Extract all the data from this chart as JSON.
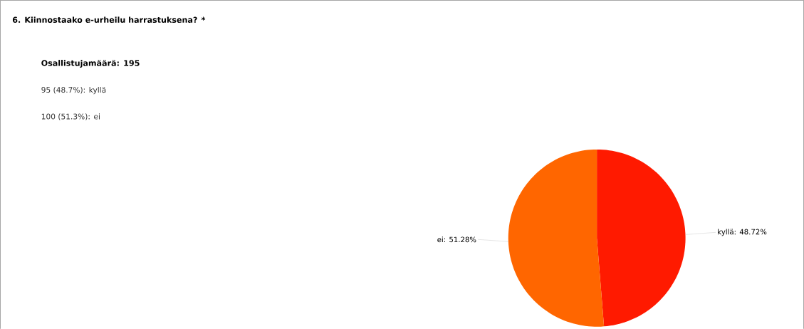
{
  "chart_data": {
    "type": "pie",
    "title": "6. Kiinnostaako e-urheilu harrastuksena? *",
    "subtitle": "Osallistujamäärä: 195",
    "annotations": [
      "95 (48.7%): kyllä",
      "100 (51.3%): ei"
    ],
    "categories": [
      "kyllä",
      "ei"
    ],
    "values": [
      48.72,
      51.28
    ],
    "colors": [
      "#ff1a00",
      "#ff6600"
    ],
    "value_labels": [
      ": 48.72%",
      ": 51.28%"
    ]
  }
}
